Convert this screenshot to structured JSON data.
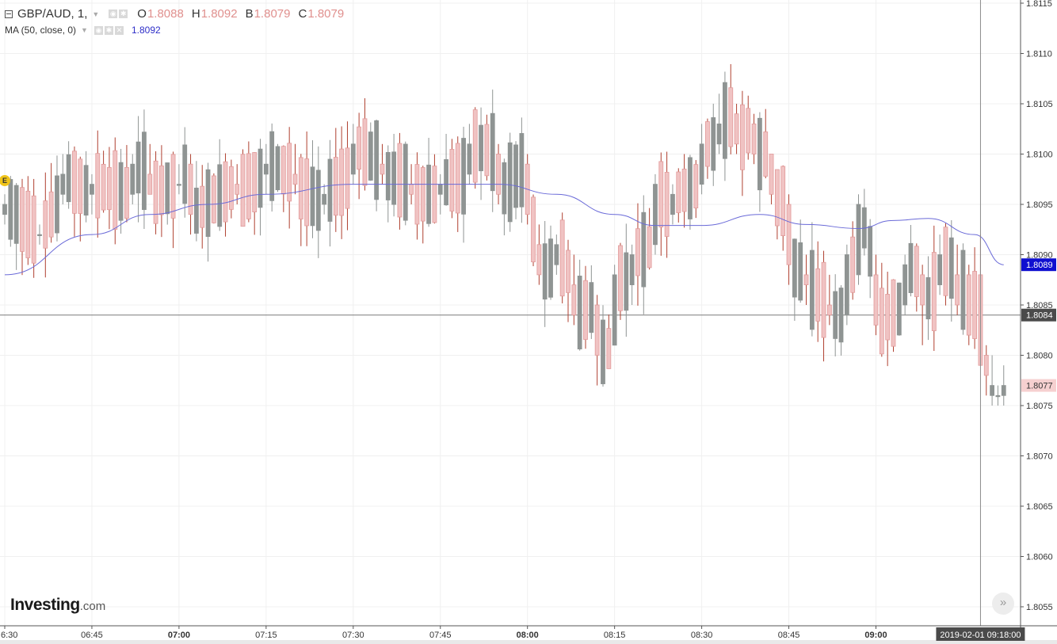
{
  "legend": {
    "symbol": "GBP/AUD, 1,",
    "o_label": "O",
    "o_value": "1.8088",
    "h_label": "H",
    "h_value": "1.8092",
    "b_label": "B",
    "b_value": "1.8079",
    "c_label": "C",
    "c_value": "1.8079",
    "ma_label": "MA (50, close, 0)",
    "ma_value": "1.8092"
  },
  "event_badge": "E",
  "branding": {
    "name": "Investing",
    "suffix": ".com"
  },
  "scroll_label": "»",
  "colors": {
    "up": "#8f9493",
    "down": "#f0c3c3",
    "down_outline": "#e29a9a",
    "wick_down": "#b04030",
    "ma": "#6a6ad8",
    "ma_label_bg": "#1010d0",
    "last_price_bg": "#f6d0d0",
    "crosshair_bg": "#4a4a4a"
  },
  "chart_data": {
    "type": "candlestick",
    "x_start": "06:30",
    "interval_minutes": 1,
    "ylim": [
      1.8052,
      1.8116
    ],
    "y_ticks": [
      "1.8055",
      "1.8060",
      "1.8065",
      "1.8070",
      "1.8075",
      "1.8080",
      "1.8085",
      "1.8090",
      "1.8095",
      "1.8100",
      "1.8105",
      "1.8110",
      "1.8115"
    ],
    "x_ticks": [
      {
        "time": "06:30",
        "label": "6:30",
        "bold": false
      },
      {
        "time": "06:45",
        "label": "06:45",
        "bold": false
      },
      {
        "time": "07:00",
        "label": "07:00",
        "bold": true
      },
      {
        "time": "07:15",
        "label": "07:15",
        "bold": false
      },
      {
        "time": "07:30",
        "label": "07:30",
        "bold": false
      },
      {
        "time": "07:45",
        "label": "07:45",
        "bold": false
      },
      {
        "time": "08:00",
        "label": "08:00",
        "bold": true
      },
      {
        "time": "08:15",
        "label": "08:15",
        "bold": false
      },
      {
        "time": "08:30",
        "label": "08:30",
        "bold": false
      },
      {
        "time": "08:45",
        "label": "08:45",
        "bold": false
      },
      {
        "time": "09:00",
        "label": "09:00",
        "bold": true
      }
    ],
    "ohlc_anchors": [
      {
        "time": "06:30",
        "o": 1.8094,
        "h": 1.8096,
        "l": 1.8093,
        "c": 1.8095
      },
      {
        "time": "06:36",
        "o": 1.8092,
        "h": 1.8093,
        "l": 1.8091,
        "c": 1.8092
      },
      {
        "time": "06:40",
        "o": 1.8096,
        "h": 1.81,
        "l": 1.8095,
        "c": 1.8098
      },
      {
        "time": "06:45",
        "o": 1.8096,
        "h": 1.8098,
        "l": 1.8094,
        "c": 1.8097
      },
      {
        "time": "06:52",
        "o": 1.8096,
        "h": 1.81,
        "l": 1.8095,
        "c": 1.8099
      },
      {
        "time": "06:55",
        "o": 1.8098,
        "h": 1.8101,
        "l": 1.8096,
        "c": 1.8096
      },
      {
        "time": "07:00",
        "o": 1.8097,
        "h": 1.8099,
        "l": 1.8096,
        "c": 1.8097
      },
      {
        "time": "07:02",
        "o": 1.8099,
        "h": 1.81,
        "l": 1.8092,
        "c": 1.8094
      },
      {
        "time": "07:10",
        "o": 1.8097,
        "h": 1.8099,
        "l": 1.8095,
        "c": 1.8096
      },
      {
        "time": "07:15",
        "o": 1.8098,
        "h": 1.8101,
        "l": 1.8096,
        "c": 1.8099
      },
      {
        "time": "07:20",
        "o": 1.8098,
        "h": 1.8101,
        "l": 1.8096,
        "c": 1.8097
      },
      {
        "time": "07:25",
        "o": 1.8095,
        "h": 1.8097,
        "l": 1.8094,
        "c": 1.8096
      },
      {
        "time": "07:30",
        "o": 1.8098,
        "h": 1.8103,
        "l": 1.8097,
        "c": 1.8101
      },
      {
        "time": "07:35",
        "o": 1.8099,
        "h": 1.8101,
        "l": 1.8097,
        "c": 1.8098
      },
      {
        "time": "07:40",
        "o": 1.8097,
        "h": 1.8099,
        "l": 1.8095,
        "c": 1.8096
      },
      {
        "time": "07:45",
        "o": 1.8096,
        "h": 1.8098,
        "l": 1.8094,
        "c": 1.8097
      },
      {
        "time": "07:50",
        "o": 1.8098,
        "h": 1.8103,
        "l": 1.8097,
        "c": 1.8101
      },
      {
        "time": "07:55",
        "o": 1.81,
        "h": 1.8101,
        "l": 1.8095,
        "c": 1.8096
      },
      {
        "time": "08:00",
        "o": 1.8099,
        "h": 1.81,
        "l": 1.8093,
        "c": 1.8094
      },
      {
        "time": "08:02",
        "o": 1.8091,
        "h": 1.8093,
        "l": 1.8087,
        "c": 1.8088
      },
      {
        "time": "08:05",
        "o": 1.8089,
        "h": 1.8092,
        "l": 1.8088,
        "c": 1.8091
      },
      {
        "time": "08:08",
        "o": 1.8087,
        "h": 1.809,
        "l": 1.8083,
        "c": 1.8084
      },
      {
        "time": "08:12",
        "o": 1.8085,
        "h": 1.8086,
        "l": 1.8077,
        "c": 1.808
      },
      {
        "time": "08:15",
        "o": 1.8081,
        "h": 1.8089,
        "l": 1.8081,
        "c": 1.8088
      },
      {
        "time": "08:18",
        "o": 1.8087,
        "h": 1.8091,
        "l": 1.8085,
        "c": 1.809
      },
      {
        "time": "08:22",
        "o": 1.8091,
        "h": 1.8098,
        "l": 1.809,
        "c": 1.8097
      },
      {
        "time": "08:25",
        "o": 1.8094,
        "h": 1.8097,
        "l": 1.8093,
        "c": 1.8096
      },
      {
        "time": "08:30",
        "o": 1.8097,
        "h": 1.8103,
        "l": 1.8096,
        "c": 1.8101
      },
      {
        "time": "08:33",
        "o": 1.8101,
        "h": 1.8106,
        "l": 1.81,
        "c": 1.8103
      },
      {
        "time": "08:36",
        "o": 1.8104,
        "h": 1.8105,
        "l": 1.81,
        "c": 1.8101
      },
      {
        "time": "08:39",
        "o": 1.8103,
        "h": 1.8104,
        "l": 1.8099,
        "c": 1.81
      },
      {
        "time": "08:42",
        "o": 1.81,
        "h": 1.81,
        "l": 1.8095,
        "c": 1.8096
      },
      {
        "time": "08:45",
        "o": 1.8095,
        "h": 1.8096,
        "l": 1.8087,
        "c": 1.8089
      },
      {
        "time": "08:48",
        "o": 1.8088,
        "h": 1.809,
        "l": 1.8085,
        "c": 1.8087
      },
      {
        "time": "08:52",
        "o": 1.8085,
        "h": 1.8088,
        "l": 1.8083,
        "c": 1.8084
      },
      {
        "time": "08:55",
        "o": 1.8084,
        "h": 1.8091,
        "l": 1.8083,
        "c": 1.809
      },
      {
        "time": "08:57",
        "o": 1.8088,
        "h": 1.8096,
        "l": 1.8087,
        "c": 1.8095
      },
      {
        "time": "09:00",
        "o": 1.8088,
        "h": 1.809,
        "l": 1.8082,
        "c": 1.8083
      },
      {
        "time": "09:05",
        "o": 1.8085,
        "h": 1.809,
        "l": 1.8084,
        "c": 1.8089
      },
      {
        "time": "09:08",
        "o": 1.8088,
        "h": 1.8089,
        "l": 1.8081,
        "c": 1.8085
      },
      {
        "time": "09:11",
        "o": 1.8087,
        "h": 1.8092,
        "l": 1.8086,
        "c": 1.809
      },
      {
        "time": "09:14",
        "o": 1.8088,
        "h": 1.8091,
        "l": 1.8084,
        "c": 1.8085
      },
      {
        "time": "09:16",
        "o": 1.8088,
        "h": 1.8089,
        "l": 1.8081,
        "c": 1.8082
      },
      {
        "time": "09:18",
        "o": 1.8088,
        "h": 1.8092,
        "l": 1.8079,
        "c": 1.8079
      },
      {
        "time": "09:19",
        "o": 1.808,
        "h": 1.8081,
        "l": 1.8076,
        "c": 1.8078
      },
      {
        "time": "09:20",
        "o": 1.8076,
        "h": 1.808,
        "l": 1.8075,
        "c": 1.8077
      },
      {
        "time": "09:21",
        "o": 1.8076,
        "h": 1.8077,
        "l": 1.8075,
        "c": 1.8076
      },
      {
        "time": "09:22",
        "o": 1.8076,
        "h": 1.8079,
        "l": 1.8075,
        "c": 1.8077
      }
    ],
    "ma_series": {
      "name": "MA (50, close, 0)",
      "points": [
        {
          "time": "06:30",
          "value": 1.8088
        },
        {
          "time": "06:45",
          "value": 1.8092
        },
        {
          "time": "06:55",
          "value": 1.8094
        },
        {
          "time": "07:05",
          "value": 1.8095
        },
        {
          "time": "07:15",
          "value": 1.8096
        },
        {
          "time": "07:30",
          "value": 1.8097
        },
        {
          "time": "07:40",
          "value": 1.8097
        },
        {
          "time": "07:55",
          "value": 1.8097
        },
        {
          "time": "08:05",
          "value": 1.8096
        },
        {
          "time": "08:15",
          "value": 1.8094
        },
        {
          "time": "08:22",
          "value": 1.80929
        },
        {
          "time": "08:30",
          "value": 1.80929
        },
        {
          "time": "08:40",
          "value": 1.8094
        },
        {
          "time": "08:48",
          "value": 1.8093
        },
        {
          "time": "08:57",
          "value": 1.80926
        },
        {
          "time": "09:03",
          "value": 1.80934
        },
        {
          "time": "09:09",
          "value": 1.80936
        },
        {
          "time": "09:17",
          "value": 1.8092
        },
        {
          "time": "09:22",
          "value": 1.8089
        }
      ]
    },
    "horizontal_line": 1.8084,
    "price_labels": [
      {
        "value": 1.8089,
        "text": "1.8089",
        "kind": "ma"
      },
      {
        "value": 1.8084,
        "text": "1.8084",
        "kind": "crosshair"
      },
      {
        "value": 1.8077,
        "text": "1.8077",
        "kind": "last"
      }
    ],
    "crosshair": {
      "time": "09:18",
      "label": "2019-02-01 09:18:00"
    }
  }
}
